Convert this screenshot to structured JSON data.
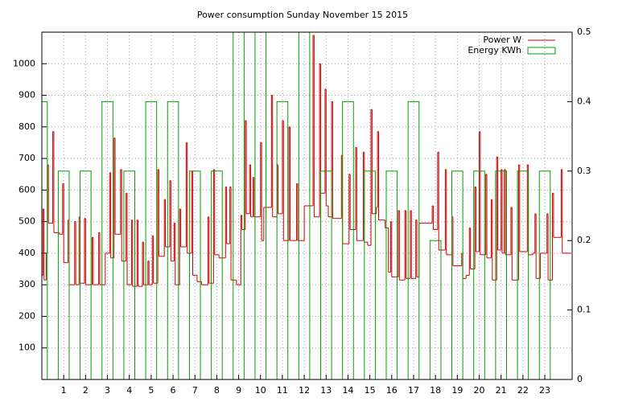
{
  "chart_data": {
    "type": "line",
    "title": "Power consumption Sunday November 15 2015",
    "xlim": [
      0,
      24.25
    ],
    "xticks": [
      1,
      2,
      3,
      4,
      5,
      6,
      7,
      8,
      9,
      10,
      11,
      12,
      13,
      14,
      15,
      16,
      17,
      18,
      19,
      20,
      21,
      22,
      23
    ],
    "ylim": [
      0,
      1100
    ],
    "yticks": [
      100,
      200,
      300,
      400,
      500,
      600,
      700,
      800,
      900,
      1000
    ],
    "y2lim": [
      0,
      0.5
    ],
    "y2ticks": [
      0,
      0.1,
      0.2,
      0.3,
      0.4,
      0.5
    ],
    "grid": true,
    "legend": "top-right",
    "series": [
      {
        "name": "Power W",
        "color": "#cc0000",
        "style": "steps",
        "x": [
          0.0,
          0.05,
          0.1,
          0.2,
          0.25,
          0.3,
          0.5,
          0.55,
          0.8,
          0.95,
          1.0,
          1.2,
          1.25,
          1.5,
          1.55,
          1.7,
          1.75,
          1.95,
          2.0,
          2.3,
          2.35,
          2.6,
          2.65,
          2.9,
          3.1,
          3.15,
          3.3,
          3.35,
          3.6,
          3.65,
          3.85,
          3.9,
          4.1,
          4.15,
          4.35,
          4.4,
          4.6,
          4.65,
          4.85,
          4.9,
          5.05,
          5.1,
          5.3,
          5.35,
          5.6,
          5.65,
          5.85,
          5.9,
          6.05,
          6.1,
          6.3,
          6.35,
          6.6,
          6.65,
          6.85,
          6.9,
          7.1,
          7.3,
          7.6,
          7.65,
          7.85,
          7.9,
          8.1,
          8.4,
          8.45,
          8.6,
          8.65,
          8.9,
          9.1,
          9.15,
          9.3,
          9.35,
          9.5,
          9.55,
          9.65,
          9.7,
          10.0,
          10.05,
          10.15,
          10.5,
          10.55,
          10.75,
          10.8,
          11.0,
          11.05,
          11.3,
          11.35,
          11.65,
          11.7,
          12.0,
          12.4,
          12.45,
          12.7,
          12.75,
          12.95,
          13.0,
          13.1,
          13.25,
          13.3,
          13.7,
          13.75,
          14.05,
          14.1,
          14.35,
          14.4,
          14.7,
          14.75,
          14.9,
          15.05,
          15.1,
          15.3,
          15.35,
          15.4,
          15.7,
          15.85,
          15.95,
          16.0,
          16.3,
          16.35,
          16.6,
          16.65,
          16.85,
          16.9,
          17.1,
          17.15,
          17.25,
          17.85,
          17.9,
          18.1,
          18.15,
          18.45,
          18.5,
          18.75,
          18.8,
          19.2,
          19.25,
          19.4,
          19.55,
          19.6,
          19.8,
          19.85,
          20.0,
          20.05,
          20.3,
          20.35,
          20.55,
          20.6,
          20.8,
          20.85,
          21.0,
          21.05,
          21.15,
          21.2,
          21.45,
          21.5,
          21.8,
          21.85,
          22.2,
          22.25,
          22.45,
          22.55,
          22.6,
          22.8,
          23.1,
          23.15,
          23.35,
          23.4,
          23.75,
          23.8,
          24.2
        ],
        "values": [
          330,
          540,
          315,
          400,
          680,
          495,
          785,
          465,
          460,
          620,
          370,
          505,
          300,
          500,
          300,
          515,
          305,
          510,
          300,
          450,
          300,
          465,
          300,
          400,
          655,
          385,
          765,
          460,
          665,
          375,
          590,
          300,
          505,
          295,
          505,
          295,
          435,
          300,
          375,
          300,
          455,
          305,
          665,
          390,
          570,
          420,
          630,
          375,
          495,
          300,
          540,
          420,
          750,
          400,
          660,
          330,
          310,
          300,
          515,
          305,
          665,
          395,
          385,
          610,
          430,
          610,
          315,
          300,
          520,
          475,
          820,
          525,
          680,
          515,
          640,
          515,
          750,
          440,
          545,
          900,
          515,
          680,
          525,
          820,
          440,
          800,
          440,
          620,
          440,
          550,
          1090,
          515,
          1000,
          590,
          920,
          550,
          515,
          880,
          510,
          710,
          430,
          650,
          475,
          735,
          440,
          720,
          435,
          425,
          855,
          525,
          545,
          785,
          505,
          480,
          340,
          500,
          325,
          535,
          315,
          535,
          320,
          535,
          320,
          505,
          325,
          495,
          550,
          475,
          720,
          410,
          665,
          395,
          515,
          360,
          400,
          320,
          330,
          480,
          350,
          610,
          405,
          785,
          395,
          650,
          385,
          570,
          315,
          705,
          410,
          665,
          400,
          665,
          395,
          545,
          315,
          680,
          405,
          680,
          395,
          400,
          525,
          320,
          400,
          525,
          315,
          590,
          450,
          665,
          400,
          400
        ]
      },
      {
        "name": "Energy KWh",
        "color": "#00a000",
        "style": "boxes",
        "axis": "y2",
        "x": [
          0,
          1,
          2,
          3,
          4,
          5,
          6,
          7,
          8,
          9,
          10,
          11,
          12,
          13,
          14,
          15,
          16,
          17,
          18,
          19,
          20,
          21,
          22,
          23
        ],
        "values": [
          0.4,
          0.3,
          0.3,
          0.4,
          0.3,
          0.4,
          0.4,
          0.3,
          0.3,
          0.5,
          0.5,
          0.4,
          0.5,
          0.3,
          0.4,
          0.3,
          0.3,
          0.4,
          0.2,
          0.3,
          0.3,
          0.3,
          0.3,
          0.3
        ]
      }
    ]
  }
}
